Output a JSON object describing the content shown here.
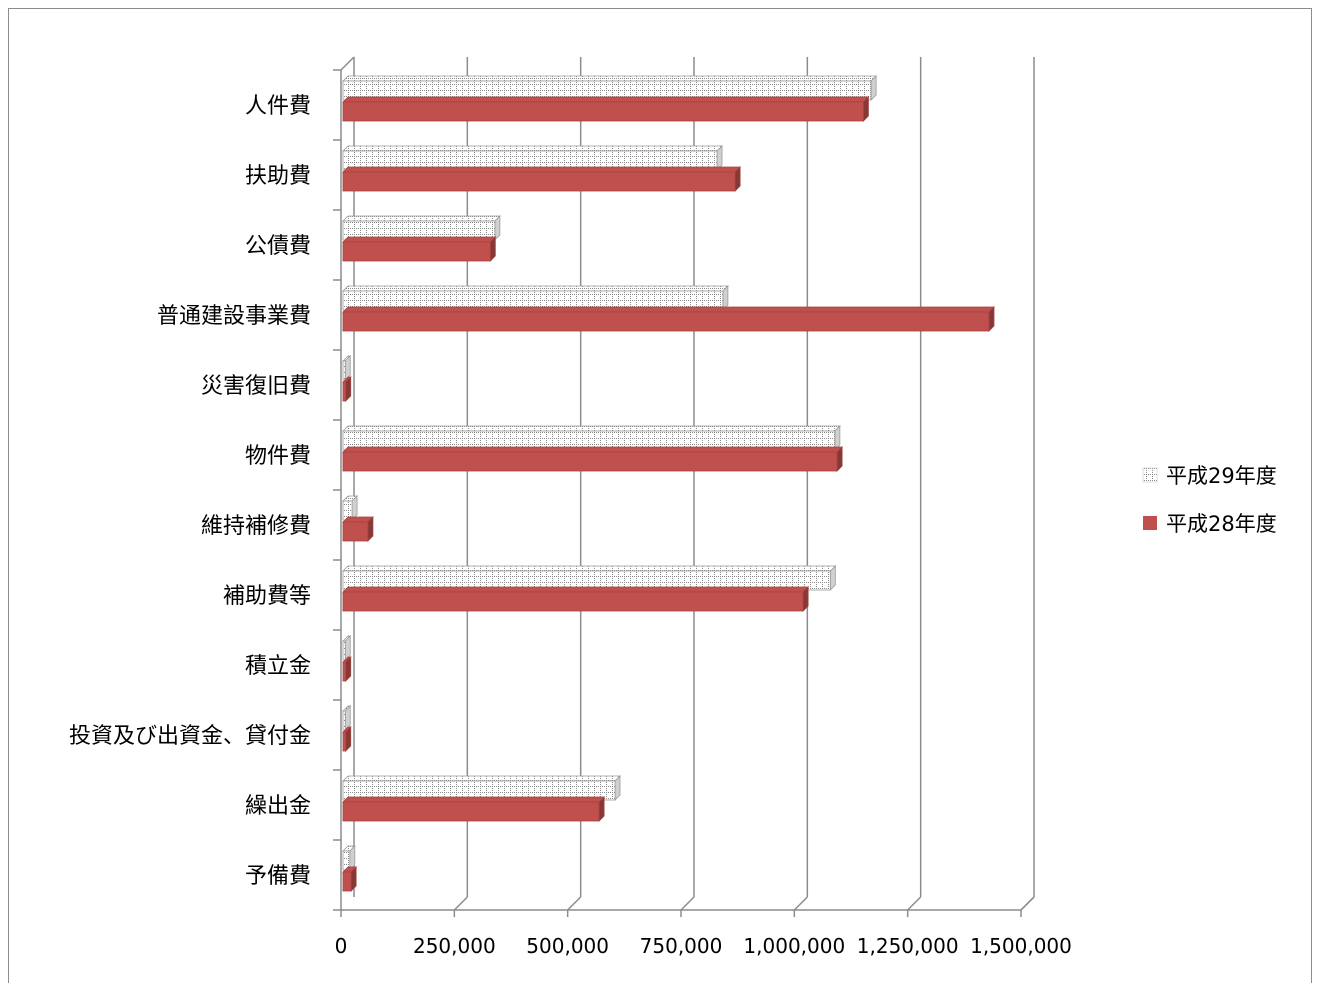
{
  "chart_data": {
    "type": "bar",
    "orientation": "horizontal",
    "categories": [
      "人件費",
      "扶助費",
      "公債費",
      "普通建設事業費",
      "災害復旧費",
      "物件費",
      "維持補修費",
      "補助費等",
      "積立金",
      "投資及び出資金、貸付金",
      "繰出金",
      "予備費"
    ],
    "series": [
      {
        "name": "平成29年度",
        "color": "#ffffff",
        "pattern": "grid",
        "values": [
          1165000,
          825000,
          335000,
          838000,
          5000,
          1085000,
          20000,
          1075000,
          5000,
          5000,
          600000,
          15000
        ]
      },
      {
        "name": "平成28年度",
        "color": "#c0504d",
        "pattern": "solid",
        "values": [
          1148000,
          865000,
          325000,
          1425000,
          6000,
          1090000,
          55000,
          1015000,
          6000,
          6000,
          565000,
          18000
        ]
      }
    ],
    "x_ticks": [
      "0",
      "250,000",
      "500,000",
      "750,000",
      "1,000,000",
      "1,250,000",
      "1,500,000"
    ],
    "xlim": [
      0,
      1500000
    ],
    "grid": "vertical-major",
    "legend_position": "right",
    "style": "3d-clustered-bar"
  }
}
